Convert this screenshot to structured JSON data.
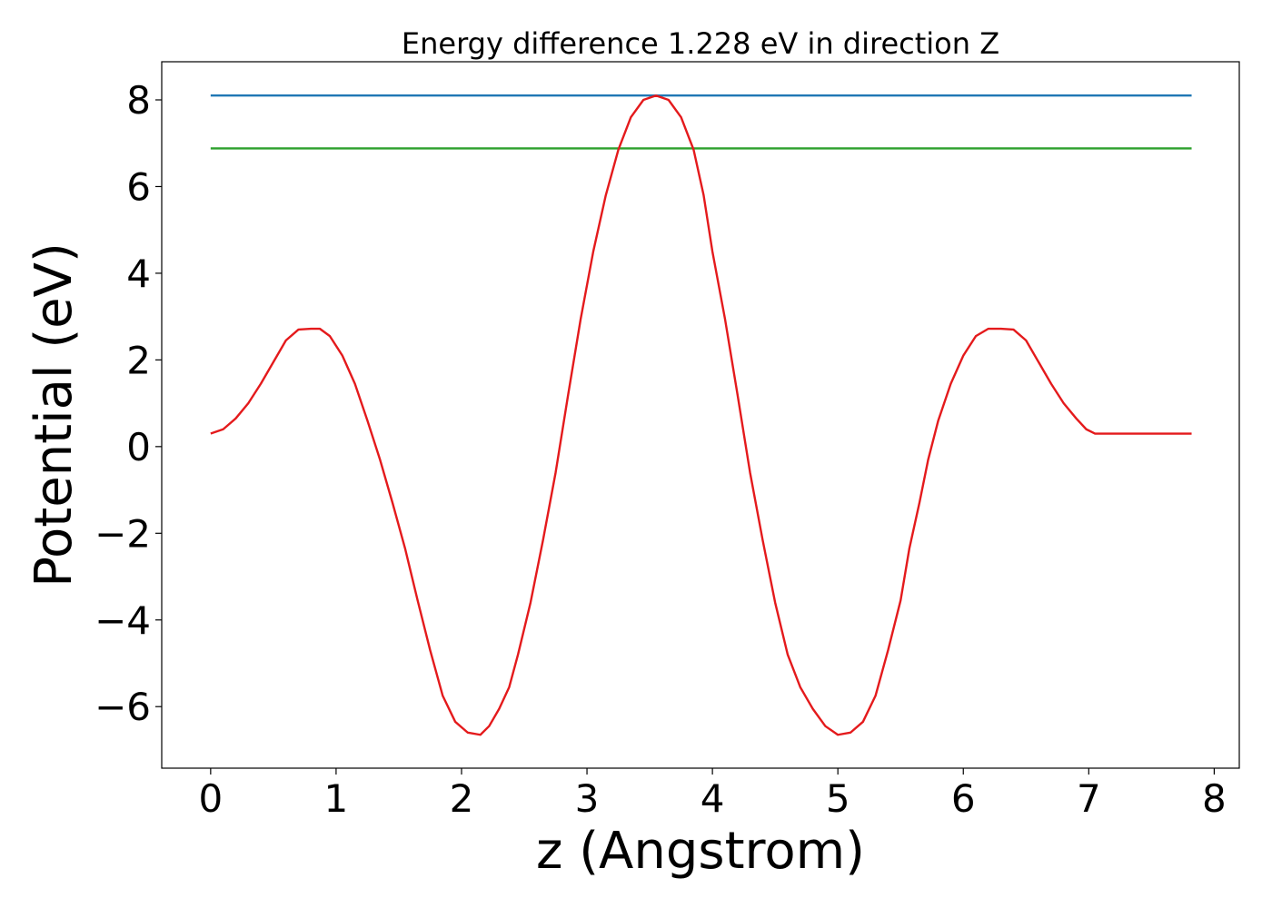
{
  "chart_data": {
    "type": "line",
    "title": "Energy difference 1.228 eV in direction Z",
    "xlabel": "z (Angstrom)",
    "ylabel": "Potential (eV)",
    "xlim": [
      -0.39,
      8.2
    ],
    "ylim": [
      -7.42,
      8.88
    ],
    "xticks": [
      0,
      1,
      2,
      3,
      4,
      5,
      6,
      7,
      8
    ],
    "xtick_labels": [
      "0",
      "1",
      "2",
      "3",
      "4",
      "5",
      "6",
      "7",
      "8"
    ],
    "yticks": [
      -6,
      -4,
      -2,
      0,
      2,
      4,
      6,
      8
    ],
    "ytick_labels": [
      "−6",
      "−4",
      "−2",
      "0",
      "2",
      "4",
      "6",
      "8"
    ],
    "grid": false,
    "series": [
      {
        "color": "#1f77b4",
        "x": [
          0,
          7.82
        ],
        "y": [
          8.1,
          8.1
        ]
      },
      {
        "color": "#2ca02c",
        "x": [
          0,
          7.82
        ],
        "y": [
          6.88,
          6.88
        ]
      },
      {
        "color": "#e41a1c",
        "x": [
          0,
          0.1,
          0.2,
          0.3,
          0.4,
          0.5,
          0.6,
          0.7,
          0.8,
          0.87,
          0.95,
          1.05,
          1.15,
          1.25,
          1.35,
          1.45,
          1.55,
          1.65,
          1.75,
          1.85,
          1.95,
          2.05,
          2.15,
          2.22,
          2.3,
          2.38,
          2.45,
          2.55,
          2.65,
          2.75,
          2.85,
          2.95,
          3.05,
          3.15,
          3.25,
          3.35,
          3.45,
          3.55,
          3.65,
          3.75,
          3.85,
          3.93,
          4.0,
          4.1,
          4.2,
          4.3,
          4.4,
          4.5,
          4.6,
          4.7,
          4.8,
          4.9,
          5.0,
          5.1,
          5.2,
          5.3,
          5.4,
          5.5,
          5.57,
          5.65,
          5.72,
          5.8,
          5.9,
          6.0,
          6.1,
          6.2,
          6.3,
          6.4,
          6.5,
          6.6,
          6.7,
          6.8,
          6.9,
          6.98,
          7.05,
          7.15,
          7.25,
          7.35,
          7.45,
          7.55,
          7.65,
          7.75,
          7.82
        ],
        "y": [
          0.3,
          0.4,
          0.65,
          1.0,
          1.45,
          1.95,
          2.45,
          2.7,
          2.72,
          2.72,
          2.55,
          2.1,
          1.45,
          0.6,
          -0.3,
          -1.3,
          -2.35,
          -3.55,
          -4.7,
          -5.75,
          -6.35,
          -6.6,
          -6.65,
          -6.45,
          -6.05,
          -5.55,
          -4.8,
          -3.6,
          -2.15,
          -0.6,
          1.2,
          2.95,
          4.5,
          5.8,
          6.85,
          7.6,
          8.0,
          8.1,
          8.0,
          7.6,
          6.85,
          5.8,
          4.5,
          2.95,
          1.2,
          -0.6,
          -2.15,
          -3.6,
          -4.8,
          -5.55,
          -6.05,
          -6.45,
          -6.65,
          -6.6,
          -6.35,
          -5.75,
          -4.7,
          -3.55,
          -2.35,
          -1.3,
          -0.3,
          0.6,
          1.45,
          2.1,
          2.55,
          2.72,
          2.72,
          2.7,
          2.45,
          1.95,
          1.45,
          1.0,
          0.65,
          0.4,
          0.3,
          0.3,
          0.3,
          0.3,
          0.3,
          0.3,
          0.3,
          0.3,
          0.3
        ]
      }
    ]
  }
}
